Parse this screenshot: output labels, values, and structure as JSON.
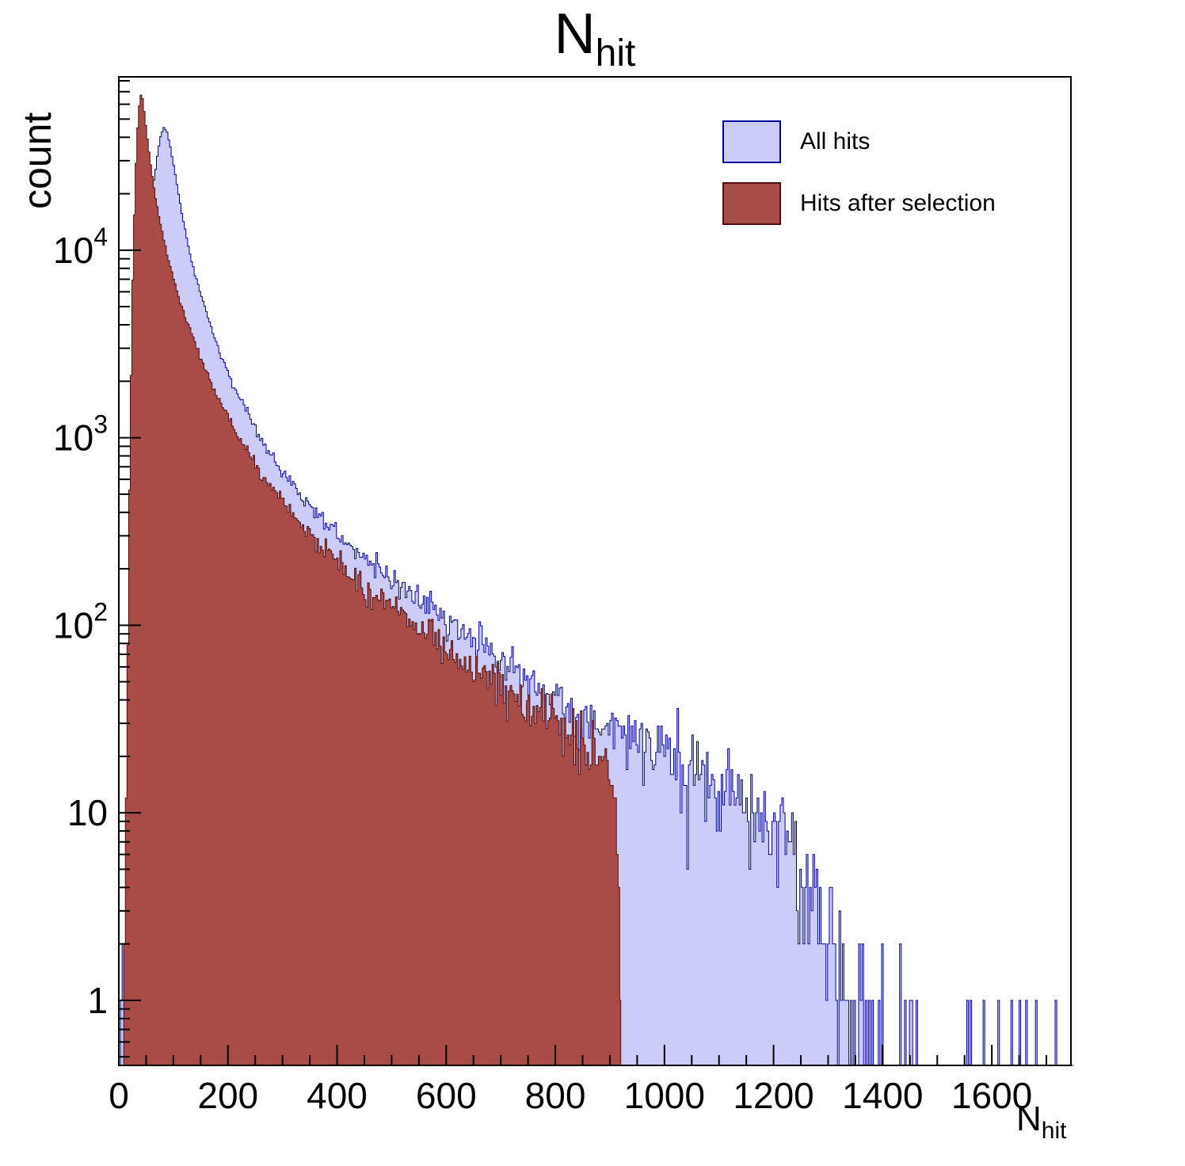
{
  "title": {
    "main": "N",
    "sub": "hit"
  },
  "axes": {
    "y_label": "count",
    "x_label_main": "N",
    "x_label_sub": "hit",
    "x_ticks": [
      0,
      200,
      400,
      600,
      800,
      1000,
      1200,
      1400,
      1600
    ],
    "x_minor_step": 50,
    "y_tick_values": [
      1,
      10,
      100,
      1000,
      10000
    ],
    "y_tick_labels": [
      {
        "base": "1",
        "exp": ""
      },
      {
        "base": "10",
        "exp": ""
      },
      {
        "base": "10",
        "exp": "2"
      },
      {
        "base": "10",
        "exp": "3"
      },
      {
        "base": "10",
        "exp": "4"
      }
    ],
    "x_min": 0,
    "x_max": 1745,
    "y_min": 0.45,
    "y_max": 84000,
    "y_scale": "log",
    "grid": false
  },
  "legend": {
    "position": "top-right",
    "items": [
      {
        "label": "All hits",
        "fill": "#ccccf9",
        "stroke": "#000099"
      },
      {
        "label": "Hits after selection",
        "fill": "#a94c47",
        "stroke": "#500f0f"
      }
    ]
  },
  "chart_data": {
    "type": "histogram",
    "xlabel": "N_hit",
    "ylabel": "count",
    "title": "N_hit",
    "bin_width": 3,
    "noise_seed": 987654321,
    "series": [
      {
        "name": "All hits",
        "fill": "#ccccf9",
        "stroke": "#000099",
        "x_max": 1750,
        "envelope": [
          [
            0,
            0.05
          ],
          [
            5,
            0.4
          ],
          [
            7,
            3
          ],
          [
            10,
            0.6
          ],
          [
            16,
            1.2
          ],
          [
            22,
            6
          ],
          [
            28,
            60
          ],
          [
            34,
            500
          ],
          [
            40,
            2600
          ],
          [
            46,
            6000
          ],
          [
            52,
            10500
          ],
          [
            58,
            16500
          ],
          [
            64,
            23000
          ],
          [
            70,
            31000
          ],
          [
            76,
            40000
          ],
          [
            82,
            45000
          ],
          [
            88,
            43000
          ],
          [
            94,
            36000
          ],
          [
            100,
            29000
          ],
          [
            108,
            21000
          ],
          [
            116,
            15500
          ],
          [
            126,
            11000
          ],
          [
            138,
            7800
          ],
          [
            152,
            5600
          ],
          [
            168,
            4000
          ],
          [
            184,
            2900
          ],
          [
            200,
            2200
          ],
          [
            220,
            1650
          ],
          [
            240,
            1250
          ],
          [
            260,
            980
          ],
          [
            280,
            800
          ],
          [
            300,
            660
          ],
          [
            330,
            510
          ],
          [
            360,
            405
          ],
          [
            400,
            310
          ],
          [
            440,
            245
          ],
          [
            480,
            197
          ],
          [
            520,
            160
          ],
          [
            560,
            131
          ],
          [
            600,
            108
          ],
          [
            640,
            89
          ],
          [
            680,
            73
          ],
          [
            720,
            60
          ],
          [
            760,
            49
          ],
          [
            800,
            40
          ],
          [
            840,
            34
          ],
          [
            880,
            29
          ],
          [
            920,
            26
          ],
          [
            960,
            23
          ],
          [
            1000,
            20.5
          ],
          [
            1040,
            18
          ],
          [
            1080,
            16
          ],
          [
            1120,
            14
          ],
          [
            1160,
            12
          ],
          [
            1190,
            10
          ],
          [
            1220,
            7.5
          ],
          [
            1250,
            5
          ],
          [
            1280,
            3.2
          ],
          [
            1310,
            2
          ],
          [
            1340,
            1.2
          ],
          [
            1380,
            0.7
          ],
          [
            1430,
            0.35
          ],
          [
            1500,
            0.2
          ],
          [
            1600,
            0.15
          ],
          [
            1700,
            0.15
          ],
          [
            1750,
            0.15
          ]
        ]
      },
      {
        "name": "Hits after selection",
        "fill": "#a94c47",
        "stroke": "#500f0f",
        "x_max": 920,
        "envelope": [
          [
            0,
            0.05
          ],
          [
            8,
            0.4
          ],
          [
            12,
            4
          ],
          [
            16,
            60
          ],
          [
            20,
            700
          ],
          [
            24,
            4500
          ],
          [
            28,
            14000
          ],
          [
            32,
            32000
          ],
          [
            36,
            54000
          ],
          [
            40,
            68000
          ],
          [
            44,
            64000
          ],
          [
            48,
            50000
          ],
          [
            54,
            36000
          ],
          [
            60,
            26500
          ],
          [
            68,
            18500
          ],
          [
            76,
            13800
          ],
          [
            84,
            10800
          ],
          [
            92,
            8700
          ],
          [
            100,
            7200
          ],
          [
            112,
            5400
          ],
          [
            124,
            4200
          ],
          [
            138,
            3300
          ],
          [
            154,
            2500
          ],
          [
            170,
            1950
          ],
          [
            186,
            1560
          ],
          [
            200,
            1300
          ],
          [
            220,
            1010
          ],
          [
            240,
            800
          ],
          [
            260,
            650
          ],
          [
            280,
            540
          ],
          [
            300,
            455
          ],
          [
            330,
            355
          ],
          [
            360,
            285
          ],
          [
            400,
            218
          ],
          [
            440,
            172
          ],
          [
            480,
            139
          ],
          [
            520,
            113
          ],
          [
            560,
            92
          ],
          [
            600,
            76
          ],
          [
            640,
            63
          ],
          [
            680,
            52
          ],
          [
            720,
            42
          ],
          [
            760,
            34
          ],
          [
            800,
            28
          ],
          [
            840,
            23
          ],
          [
            870,
            20
          ],
          [
            895,
            17
          ],
          [
            905,
            14
          ],
          [
            912,
            9
          ],
          [
            917,
            4
          ],
          [
            920,
            1.5
          ]
        ]
      }
    ]
  }
}
